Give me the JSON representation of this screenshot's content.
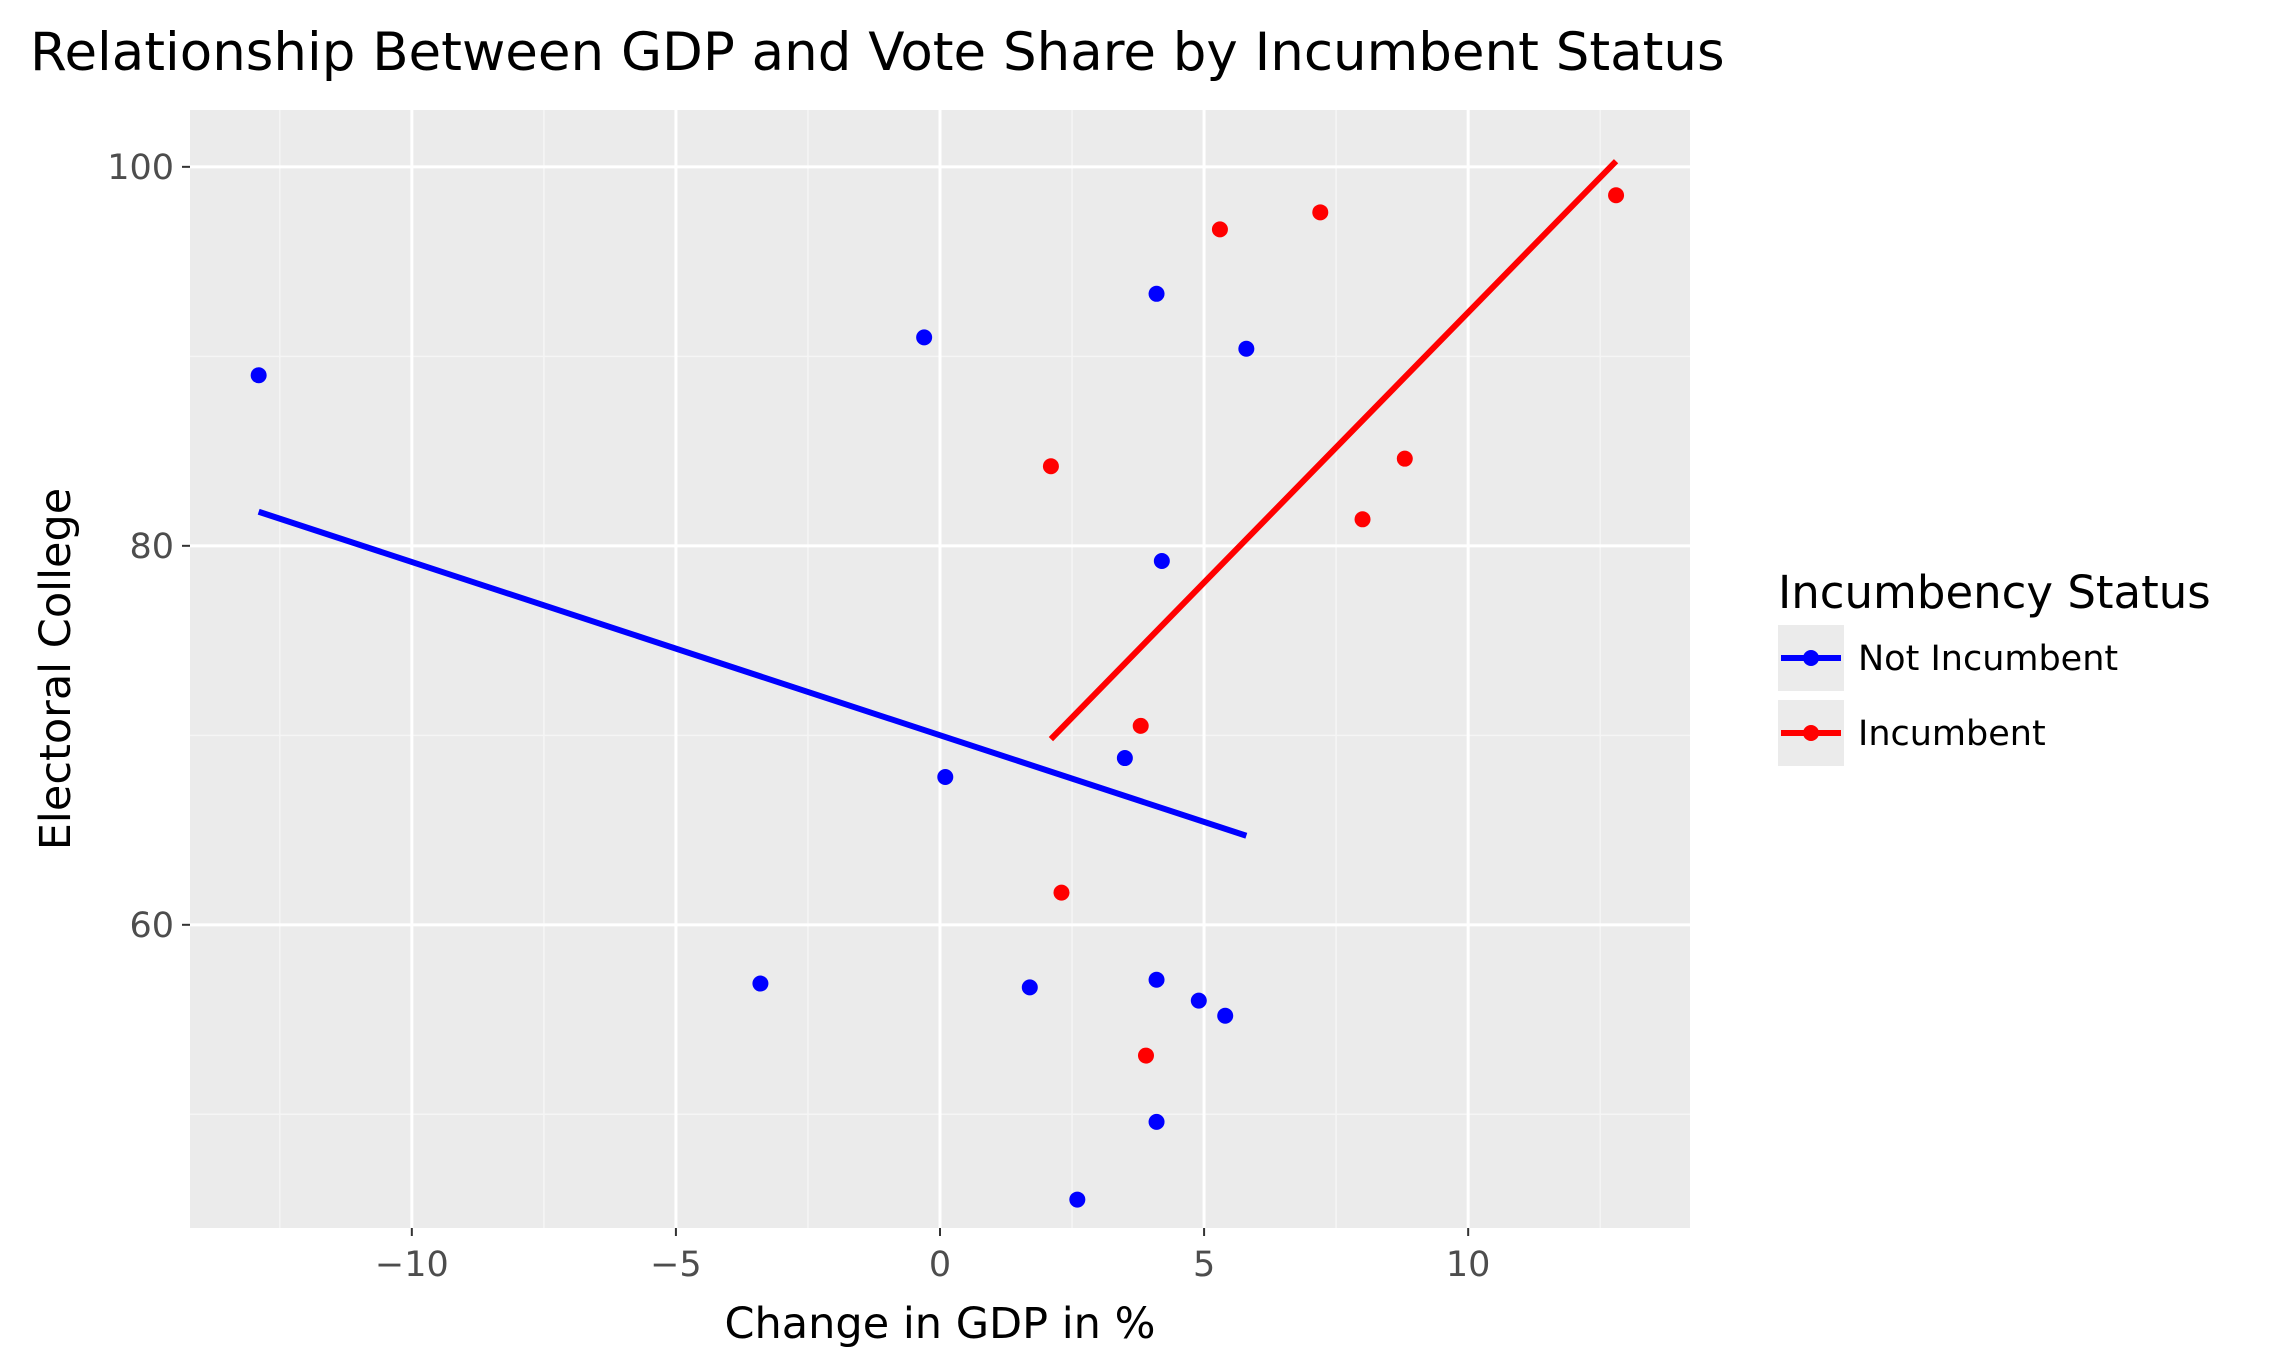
{
  "colors": {
    "panel_background": "#ebebeb",
    "grid_major": "#ffffff",
    "grid_minor": "#f5f5f5",
    "not_incumbent": "#0000ff",
    "incumbent": "#ff0000"
  },
  "chart_data": {
    "type": "scatter",
    "title": "Relationship Between GDP and Vote Share by Incumbent Status",
    "xlabel": "Change in GDP in %",
    "ylabel": "Electoral College",
    "xlim": [
      -14.2,
      14.2
    ],
    "ylim": [
      44,
      103
    ],
    "x_ticks": [
      -10,
      -5,
      0,
      5,
      10
    ],
    "x_tick_labels": [
      "−10",
      "−5",
      "0",
      "5",
      "10"
    ],
    "x_minor_ticks": [
      -12.5,
      -7.5,
      -2.5,
      2.5,
      7.5,
      12.5
    ],
    "y_ticks": [
      60,
      80,
      100
    ],
    "y_tick_labels": [
      "60",
      "80",
      "100"
    ],
    "y_minor_ticks": [
      50,
      70,
      90
    ],
    "grid": true,
    "legend": {
      "title": "Incumbency Status",
      "position": "right",
      "entries": [
        {
          "key": "not_incumbent",
          "label": "Not Incumbent"
        },
        {
          "key": "incumbent",
          "label": "Incumbent"
        }
      ]
    },
    "series": [
      {
        "name": "Not Incumbent",
        "key": "not_incumbent",
        "color": "#0000ff",
        "points": [
          {
            "x": -12.9,
            "y": 89.0
          },
          {
            "x": -0.3,
            "y": 91.0
          },
          {
            "x": 4.1,
            "y": 93.3
          },
          {
            "x": 5.8,
            "y": 90.4
          },
          {
            "x": 4.2,
            "y": 79.2
          },
          {
            "x": 3.5,
            "y": 68.8
          },
          {
            "x": 0.1,
            "y": 67.8
          },
          {
            "x": -3.4,
            "y": 56.9
          },
          {
            "x": 1.7,
            "y": 56.7
          },
          {
            "x": 4.1,
            "y": 57.1
          },
          {
            "x": 4.9,
            "y": 56.0
          },
          {
            "x": 5.4,
            "y": 55.2
          },
          {
            "x": 4.1,
            "y": 49.6
          },
          {
            "x": 2.6,
            "y": 45.5
          }
        ],
        "fit_line": {
          "x": [
            -12.9,
            5.8
          ],
          "y": [
            81.8,
            64.7
          ]
        }
      },
      {
        "name": "Incumbent",
        "key": "incumbent",
        "color": "#ff0000",
        "points": [
          {
            "x": 5.3,
            "y": 96.7
          },
          {
            "x": 7.2,
            "y": 97.6
          },
          {
            "x": 12.8,
            "y": 98.5
          },
          {
            "x": 2.1,
            "y": 84.2
          },
          {
            "x": 8.8,
            "y": 84.6
          },
          {
            "x": 8.0,
            "y": 81.4
          },
          {
            "x": 3.8,
            "y": 70.5
          },
          {
            "x": 2.3,
            "y": 61.7
          },
          {
            "x": 3.9,
            "y": 53.1
          }
        ],
        "fit_line": {
          "x": [
            2.1,
            12.8
          ],
          "y": [
            69.8,
            100.3
          ]
        }
      }
    ]
  }
}
